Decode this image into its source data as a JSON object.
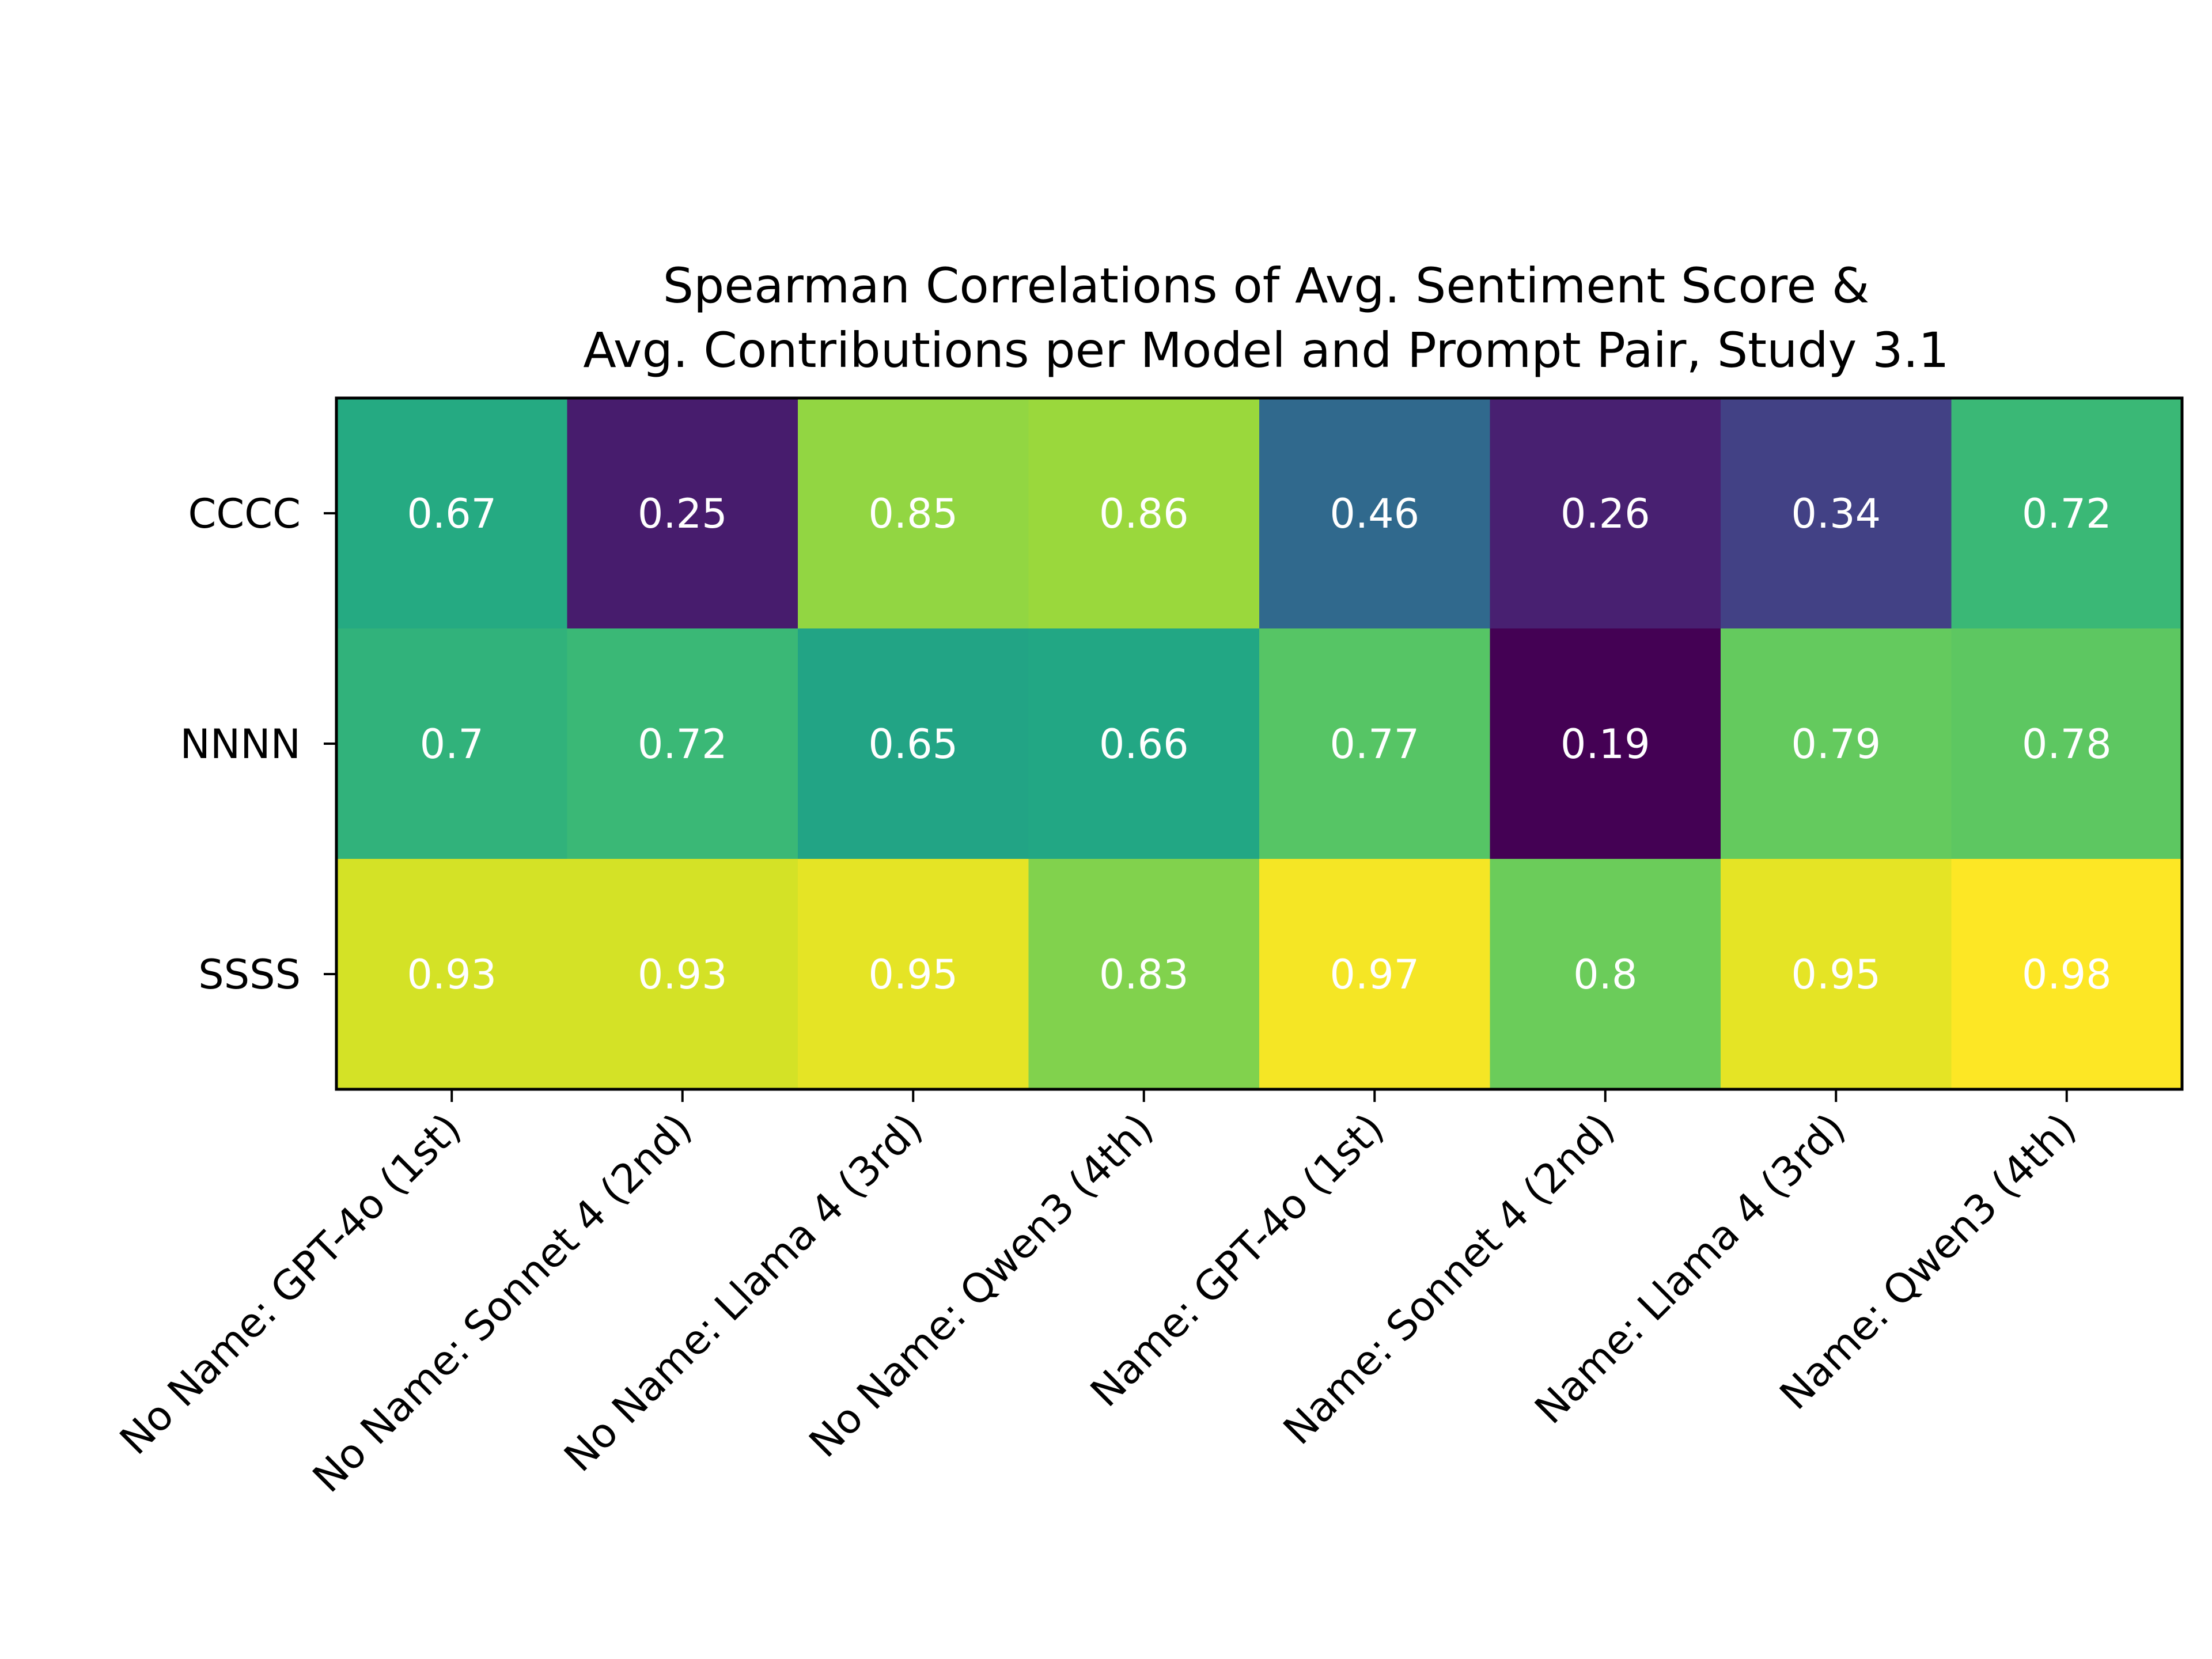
{
  "chart_data": {
    "type": "heatmap",
    "title_lines": [
      "Spearman Correlations of Avg. Sentiment Score &",
      "Avg. Contributions per Model and Prompt Pair, Study 3.1"
    ],
    "rows": [
      "CCCC",
      "NNNN",
      "SSSS"
    ],
    "columns": [
      "No Name: GPT-4o (1st)",
      "No Name: Sonnet 4 (2nd)",
      "No Name: Llama 4 (3rd)",
      "No Name: Qwen3 (4th)",
      "Name: GPT-4o (1st)",
      "Name: Sonnet 4 (2nd)",
      "Name: Llama 4 (3rd)",
      "Name: Qwen3 (4th)"
    ],
    "values": [
      [
        0.67,
        0.25,
        0.85,
        0.86,
        0.46,
        0.26,
        0.34,
        0.72
      ],
      [
        0.7,
        0.72,
        0.65,
        0.66,
        0.77,
        0.19,
        0.79,
        0.78
      ],
      [
        0.93,
        0.93,
        0.95,
        0.83,
        0.97,
        0.8,
        0.95,
        0.98
      ]
    ],
    "cell_labels": [
      [
        "0.67",
        "0.25",
        "0.85",
        "0.86",
        "0.46",
        "0.26",
        "0.34",
        "0.72"
      ],
      [
        "0.7",
        "0.72",
        "0.65",
        "0.66",
        "0.77",
        "0.19",
        "0.79",
        "0.78"
      ],
      [
        "0.93",
        "0.93",
        "0.95",
        "0.83",
        "0.97",
        "0.8",
        "0.95",
        "0.98"
      ]
    ],
    "colormap": "viridis",
    "color_range": [
      0.19,
      0.98
    ],
    "legend": "none",
    "grid": false
  }
}
